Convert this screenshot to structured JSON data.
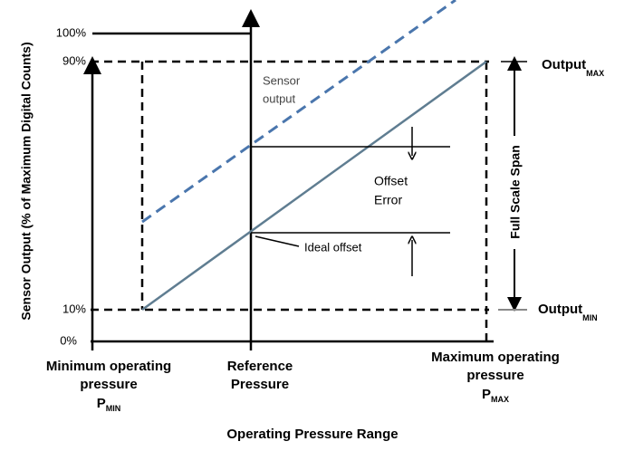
{
  "y_axis": {
    "label": "Sensor Output (% of Maximum Digital Counts)",
    "ticks": [
      "100%",
      "90%",
      "10%",
      "0%"
    ]
  },
  "x_axis": {
    "label": "Operating Pressure Range"
  },
  "pressure_labels": {
    "minimum": {
      "lines": [
        "Minimum operating",
        "pressure"
      ],
      "symbol": "P",
      "subscript": "MIN"
    },
    "reference": {
      "lines": [
        "Reference",
        "Pressure"
      ]
    },
    "maximum": {
      "lines": [
        "Maximum operating",
        "pressure"
      ],
      "symbol": "P",
      "subscript": "MAX"
    }
  },
  "outputs": {
    "max": {
      "text": "Output",
      "subscript": "MAX"
    },
    "min": {
      "text": "Output",
      "subscript": "MIN"
    }
  },
  "annotations": {
    "sensor_output": [
      "Sensor",
      "output"
    ],
    "offset_error": [
      "Offset",
      "Error"
    ],
    "ideal_offset": "Ideal offset",
    "full_scale_span": "Full Scale Span"
  }
}
